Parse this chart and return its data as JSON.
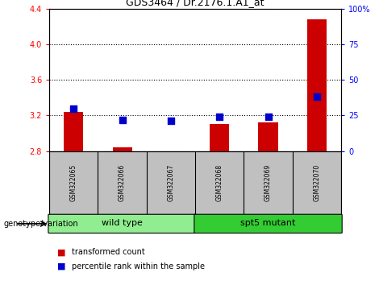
{
  "title": "GDS3464 / Dr.2176.1.A1_at",
  "samples": [
    "GSM322065",
    "GSM322066",
    "GSM322067",
    "GSM322068",
    "GSM322069",
    "GSM322070"
  ],
  "groups": [
    {
      "name": "wild type",
      "color": "#90EE90",
      "samples": [
        0,
        1,
        2
      ]
    },
    {
      "name": "spt5 mutant",
      "color": "#33CC33",
      "samples": [
        3,
        4,
        5
      ]
    }
  ],
  "transformed_count": [
    3.24,
    2.84,
    2.8,
    3.1,
    3.12,
    4.28
  ],
  "percentile_rank": [
    30,
    22,
    21,
    24,
    24,
    38
  ],
  "ylim_left": [
    2.8,
    4.4
  ],
  "ylim_right": [
    0,
    100
  ],
  "yticks_left": [
    2.8,
    3.2,
    3.6,
    4.0,
    4.4
  ],
  "yticks_right": [
    0,
    25,
    50,
    75,
    100
  ],
  "ytick_labels_right": [
    "0",
    "25",
    "50",
    "75",
    "100%"
  ],
  "bar_color": "#CC0000",
  "dot_color": "#0000CC",
  "bar_width": 0.4,
  "dot_size": 35,
  "genotype_label": "genotype/variation",
  "legend_items": [
    {
      "label": "transformed count",
      "color": "#CC0000"
    },
    {
      "label": "percentile rank within the sample",
      "color": "#0000CC"
    }
  ]
}
